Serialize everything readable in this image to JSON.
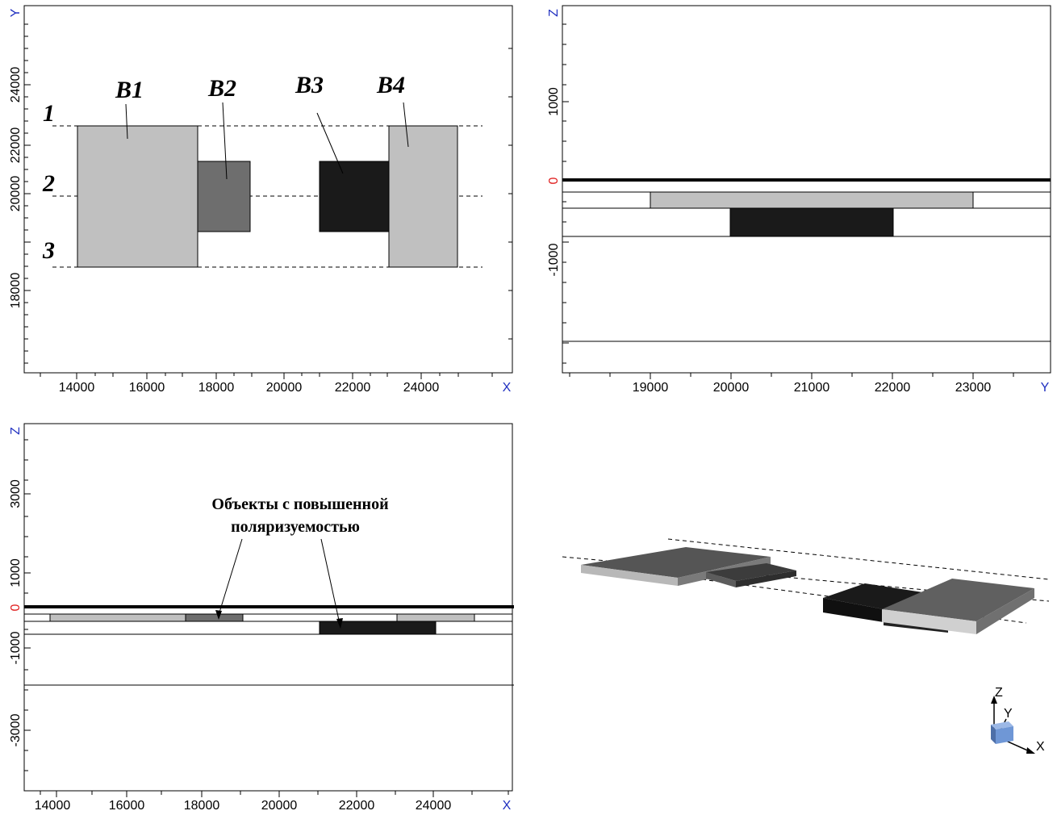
{
  "plan_view": {
    "x_axis_letter": "X",
    "y_axis_letter": "Y",
    "x_ticks": [
      "14000",
      "16000",
      "18000",
      "20000",
      "22000",
      "24000"
    ],
    "y_ticks": [
      "24000",
      "22000",
      "20000",
      "18000"
    ],
    "profile_labels": [
      "1",
      "2",
      "3"
    ],
    "block_labels": [
      "B1",
      "B2",
      "B3",
      "B4"
    ],
    "colors": {
      "B1": "#c0c0c0",
      "B2": "#6e6e6e",
      "B3": "#1a1a1a",
      "B4": "#c0c0c0"
    }
  },
  "section_y": {
    "z_axis_letter": "Z",
    "y_axis_letter": "Y",
    "y_ticks": [
      "19000",
      "20000",
      "21000",
      "22000",
      "23000"
    ],
    "z_ticks": [
      "1000",
      "0",
      "-1000"
    ]
  },
  "section_x": {
    "z_axis_letter": "Z",
    "x_axis_letter": "X",
    "x_ticks": [
      "14000",
      "16000",
      "18000",
      "20000",
      "22000",
      "24000"
    ],
    "z_ticks": [
      "3000",
      "1000",
      "0",
      "-1000",
      "-3000"
    ],
    "annotation_line1": "Объекты с повышенной",
    "annotation_line2": "поляризуемостью"
  },
  "view_3d": {
    "axis_z": "Z",
    "axis_y": "Y",
    "axis_x": "X",
    "gizmo_color": "#6f97d6"
  }
}
